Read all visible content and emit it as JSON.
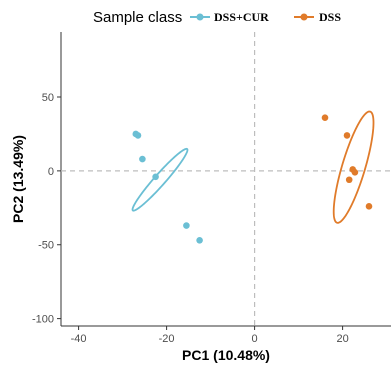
{
  "chart_data": {
    "type": "scatter",
    "title": "",
    "xlabel": "PC1 (10.48%)",
    "ylabel": "PC2 (13.49%)",
    "xlim": [
      -44,
      31
    ],
    "ylim": [
      -105,
      94
    ],
    "xticks": [
      -40,
      -20,
      0,
      20
    ],
    "yticks": [
      50,
      0,
      -50,
      -100
    ],
    "reference_lines": {
      "x": 0,
      "y": 0,
      "style": "dashed"
    },
    "grid": false,
    "legend": {
      "title": "Sample class",
      "placement": "top",
      "entries": [
        "DSS+CUR",
        "DSS"
      ]
    },
    "series": [
      {
        "name": "DSS+CUR",
        "color": "#6bbfd4",
        "points": [
          [
            -27,
            25
          ],
          [
            -26.5,
            24
          ],
          [
            -25.5,
            8
          ],
          [
            -22.5,
            -4
          ],
          [
            -15.5,
            -37
          ],
          [
            -12.5,
            -47
          ]
        ],
        "ellipse": {
          "center": [
            -21.5,
            -6
          ],
          "half_axes": [
            41,
            5.5
          ],
          "angle_deg": -48.5
        }
      },
      {
        "name": "DSS",
        "color": "#e07b2a",
        "points": [
          [
            16,
            36
          ],
          [
            21,
            24
          ],
          [
            21.5,
            -6
          ],
          [
            22.3,
            1
          ],
          [
            22.8,
            -1
          ],
          [
            26,
            -24
          ]
        ],
        "ellipse": {
          "center": [
            22.5,
            2.5
          ],
          "half_axes": [
            58,
            11.5
          ],
          "angle_deg": -73.4
        }
      }
    ]
  }
}
